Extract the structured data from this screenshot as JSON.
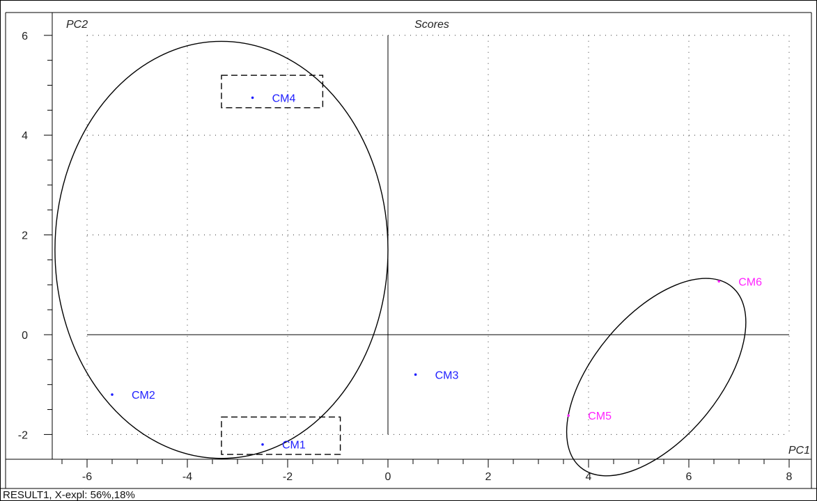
{
  "colors": {
    "group_blue": "#1f1fff",
    "group_magenta": "#ff22ff",
    "axis": "#000000",
    "grid": "#333333"
  },
  "chart_data": {
    "type": "scatter",
    "title": "Scores",
    "xlabel": "PC1",
    "ylabel": "PC2",
    "xlim": [
      -6.75,
      8.25
    ],
    "ylim": [
      -2.5,
      6.25
    ],
    "x_ticks": [
      -6,
      -4,
      -2,
      0,
      2,
      4,
      6,
      8
    ],
    "y_ticks": [
      -2,
      0,
      2,
      4,
      6
    ],
    "grid": true,
    "points": [
      {
        "label": "CM1",
        "x": -2.5,
        "y": -2.2,
        "color": "#1f1fff"
      },
      {
        "label": "CM2",
        "x": -5.5,
        "y": -1.2,
        "color": "#1f1fff"
      },
      {
        "label": "CM3",
        "x": 0.55,
        "y": -0.8,
        "color": "#1f1fff"
      },
      {
        "label": "CM4",
        "x": -2.7,
        "y": 4.75,
        "color": "#1f1fff"
      },
      {
        "label": "CM5",
        "x": 3.6,
        "y": -1.62,
        "color": "#ff22ff"
      },
      {
        "label": "CM6",
        "x": 6.6,
        "y": 1.07,
        "color": "#ff22ff"
      }
    ],
    "annotations": {
      "ellipses": [
        {
          "cx": -3.32,
          "cy": 1.7,
          "rx": 3.32,
          "ry": 4.18,
          "angle": 0
        },
        {
          "cx": 5.35,
          "cy": -0.85,
          "rx": 2.35,
          "ry": 1.25,
          "angle": -50
        }
      ],
      "dashed_boxes": [
        {
          "x0": -3.32,
          "x1": -1.3,
          "y0": 4.55,
          "y1": 5.2
        },
        {
          "x0": -3.32,
          "x1": -0.95,
          "y0": -2.4,
          "y1": -1.65
        }
      ]
    }
  },
  "footer": "RESULT1, X-expl: 56%,18%"
}
